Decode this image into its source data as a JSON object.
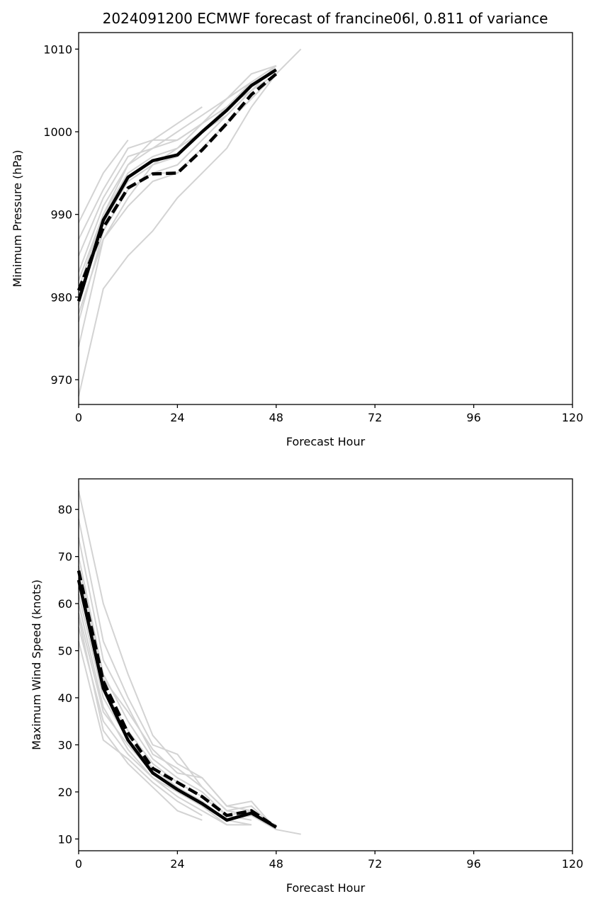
{
  "title": "2024091200 ECMWF forecast of francine06l, 0.811 of variance",
  "chart_data": [
    {
      "type": "line",
      "xlabel": "Forecast Hour",
      "ylabel": "Minimum Pressure (hPa)",
      "xlim": [
        0,
        120
      ],
      "ylim": [
        967,
        1012
      ],
      "xticks": [
        0,
        24,
        48,
        72,
        96,
        120
      ],
      "yticks": [
        970,
        980,
        990,
        1000,
        1010
      ],
      "grid": false,
      "members": [
        {
          "x": [
            0,
            6,
            12,
            18,
            24,
            30,
            36,
            42,
            48
          ],
          "y": [
            968,
            981,
            985,
            988,
            992,
            995,
            998,
            1003,
            1007
          ]
        },
        {
          "x": [
            0,
            6,
            12,
            18,
            24,
            30,
            36,
            42,
            48
          ],
          "y": [
            974,
            987,
            991,
            994,
            995,
            998,
            1001,
            1004,
            1007
          ]
        },
        {
          "x": [
            0,
            6,
            12,
            18,
            24,
            30,
            36,
            42,
            48
          ],
          "y": [
            977,
            988,
            993,
            995,
            996,
            999,
            1002,
            1005,
            1007
          ]
        },
        {
          "x": [
            0,
            6,
            12,
            18,
            24,
            30,
            36,
            42,
            48
          ],
          "y": [
            979,
            989,
            994,
            996,
            997,
            1000,
            1003,
            1005,
            1008
          ]
        },
        {
          "x": [
            0,
            6,
            12,
            18,
            24,
            30,
            36,
            42,
            48
          ],
          "y": [
            981,
            990,
            995,
            997,
            998,
            1001,
            1003,
            1006,
            1008
          ]
        },
        {
          "x": [
            0,
            6,
            12,
            18,
            24,
            30,
            36,
            42,
            48
          ],
          "y": [
            983,
            991,
            996,
            998,
            999,
            1001,
            1004,
            1006,
            1008
          ]
        },
        {
          "x": [
            0,
            6,
            12,
            18,
            24,
            30,
            36,
            42,
            48
          ],
          "y": [
            985,
            992,
            997,
            998,
            1000,
            1002,
            1004,
            1007,
            1008
          ]
        },
        {
          "x": [
            0,
            6,
            12,
            18,
            24,
            30
          ],
          "y": [
            987,
            993,
            998,
            999,
            1001,
            1003
          ]
        },
        {
          "x": [
            0,
            6,
            12
          ],
          "y": [
            989,
            995,
            999
          ]
        },
        {
          "x": [
            0,
            6,
            12,
            18,
            24,
            30,
            36,
            42
          ],
          "y": [
            982,
            990,
            996,
            999,
            999,
            1001,
            1004,
            1006
          ]
        },
        {
          "x": [
            0,
            6,
            12,
            18,
            24,
            30,
            36,
            42
          ],
          "y": [
            980,
            988,
            993,
            995,
            995,
            998,
            1001,
            1004
          ]
        },
        {
          "x": [
            0,
            6,
            12,
            18,
            24,
            30,
            36,
            42,
            48,
            54
          ],
          "y": [
            978,
            987,
            992,
            996,
            998,
            1000,
            1002,
            1005,
            1007,
            1010
          ]
        }
      ],
      "mean_solid": {
        "x": [
          0,
          6,
          12,
          18,
          24,
          30,
          36,
          42,
          48
        ],
        "y": [
          979.5,
          989.3,
          994.5,
          996.5,
          997.2,
          1000,
          1002.6,
          1005.6,
          1007.5
        ]
      },
      "mean_dashed": {
        "x": [
          0,
          6,
          12,
          18,
          24,
          30,
          36,
          42,
          48
        ],
        "y": [
          980.8,
          988.4,
          993.2,
          994.9,
          995,
          997.8,
          1001,
          1004.5,
          1007
        ]
      }
    },
    {
      "type": "line",
      "xlabel": "Forecast Hour",
      "ylabel": "Maximum Wind Speed (knots)",
      "xlim": [
        0,
        120
      ],
      "ylim": [
        7.5,
        86.5
      ],
      "xticks": [
        0,
        24,
        48,
        72,
        96,
        120
      ],
      "yticks": [
        10,
        20,
        30,
        40,
        50,
        60,
        70,
        80
      ],
      "grid": false,
      "members": [
        {
          "x": [
            0,
            6,
            12,
            18,
            24,
            30,
            36,
            42,
            48
          ],
          "y": [
            84,
            60,
            45,
            32,
            26,
            23,
            17,
            18,
            12
          ]
        },
        {
          "x": [
            0,
            6,
            12,
            18,
            24,
            30,
            36,
            42,
            48
          ],
          "y": [
            78,
            52,
            40,
            30,
            28,
            21,
            16,
            17,
            12
          ]
        },
        {
          "x": [
            0,
            6,
            12,
            18,
            24,
            30,
            36,
            42,
            48
          ],
          "y": [
            74,
            48,
            38,
            28,
            25,
            21,
            16,
            15,
            13
          ]
        },
        {
          "x": [
            0,
            6,
            12,
            18,
            24,
            30,
            36,
            42
          ],
          "y": [
            70,
            45,
            35,
            27,
            23,
            20,
            15,
            16
          ]
        },
        {
          "x": [
            0,
            6,
            12,
            18,
            24,
            30,
            36,
            42
          ],
          "y": [
            66,
            42,
            33,
            26,
            22,
            19,
            15,
            14
          ]
        },
        {
          "x": [
            0,
            6,
            12,
            18,
            24,
            30,
            36,
            42
          ],
          "y": [
            62,
            40,
            31,
            25,
            21,
            18,
            14,
            13
          ]
        },
        {
          "x": [
            0,
            6,
            12,
            18,
            24,
            30,
            36,
            42
          ],
          "y": [
            58,
            37,
            30,
            24,
            20,
            17,
            13,
            13
          ]
        },
        {
          "x": [
            0,
            6,
            12,
            18,
            24,
            30,
            36
          ],
          "y": [
            55,
            35,
            28,
            23,
            19,
            16,
            13
          ]
        },
        {
          "x": [
            0,
            6,
            12,
            18,
            24,
            30
          ],
          "y": [
            52,
            31,
            27,
            22,
            18,
            15
          ]
        },
        {
          "x": [
            0,
            6,
            12,
            18,
            24,
            30
          ],
          "y": [
            57,
            33,
            26,
            21,
            16,
            14
          ]
        },
        {
          "x": [
            0,
            6,
            12,
            18,
            24,
            30,
            36,
            42
          ],
          "y": [
            68,
            44,
            37,
            29,
            24,
            23,
            17,
            16
          ]
        },
        {
          "x": [
            0,
            6,
            12,
            18,
            24,
            30,
            36,
            42,
            48,
            54
          ],
          "y": [
            60,
            38,
            29,
            23,
            20,
            17,
            14,
            15,
            12,
            11
          ]
        }
      ],
      "mean_solid": {
        "x": [
          0,
          6,
          12,
          18,
          24,
          30,
          36,
          42,
          48
        ],
        "y": [
          65,
          42,
          31,
          24,
          20.5,
          17.5,
          14,
          15.5,
          12.5
        ]
      },
      "mean_dashed": {
        "x": [
          0,
          6,
          12,
          18,
          24,
          30,
          36,
          42,
          48
        ],
        "y": [
          67,
          43.5,
          32.5,
          25,
          22,
          19,
          15,
          16,
          12.5
        ]
      }
    }
  ]
}
